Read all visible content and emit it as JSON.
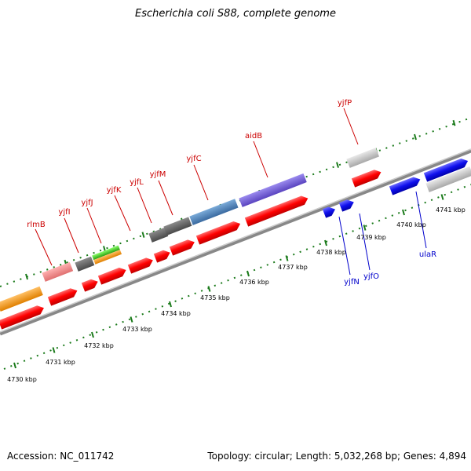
{
  "title": "Escherichia coli S88, complete genome",
  "footer": {
    "accession": "Accession: NC_011742",
    "summary": "Topology: circular; Length: 5,032,268 bp; Genes: 4,894"
  },
  "colors": {
    "gene_top": "#cc0000",
    "gene_bottom": "#0000cc",
    "tick": "#1a7a1a",
    "backbone": "#888888"
  },
  "kbp_labels": [
    "4730 kbp",
    "4731 kbp",
    "4732 kbp",
    "4733 kbp",
    "4734 kbp",
    "4735 kbp",
    "4736 kbp",
    "4737 kbp",
    "4738 kbp",
    "4739 kbp",
    "4740 kbp",
    "4741 kbp"
  ],
  "genes_top": [
    "rlmB",
    "yjfI",
    "yjfJ",
    "yjfK",
    "yjfL",
    "yjfM",
    "yjfC",
    "aidB",
    "yjfP"
  ],
  "genes_bottom": [
    "yjfN",
    "yjfO",
    "ulaR"
  ]
}
